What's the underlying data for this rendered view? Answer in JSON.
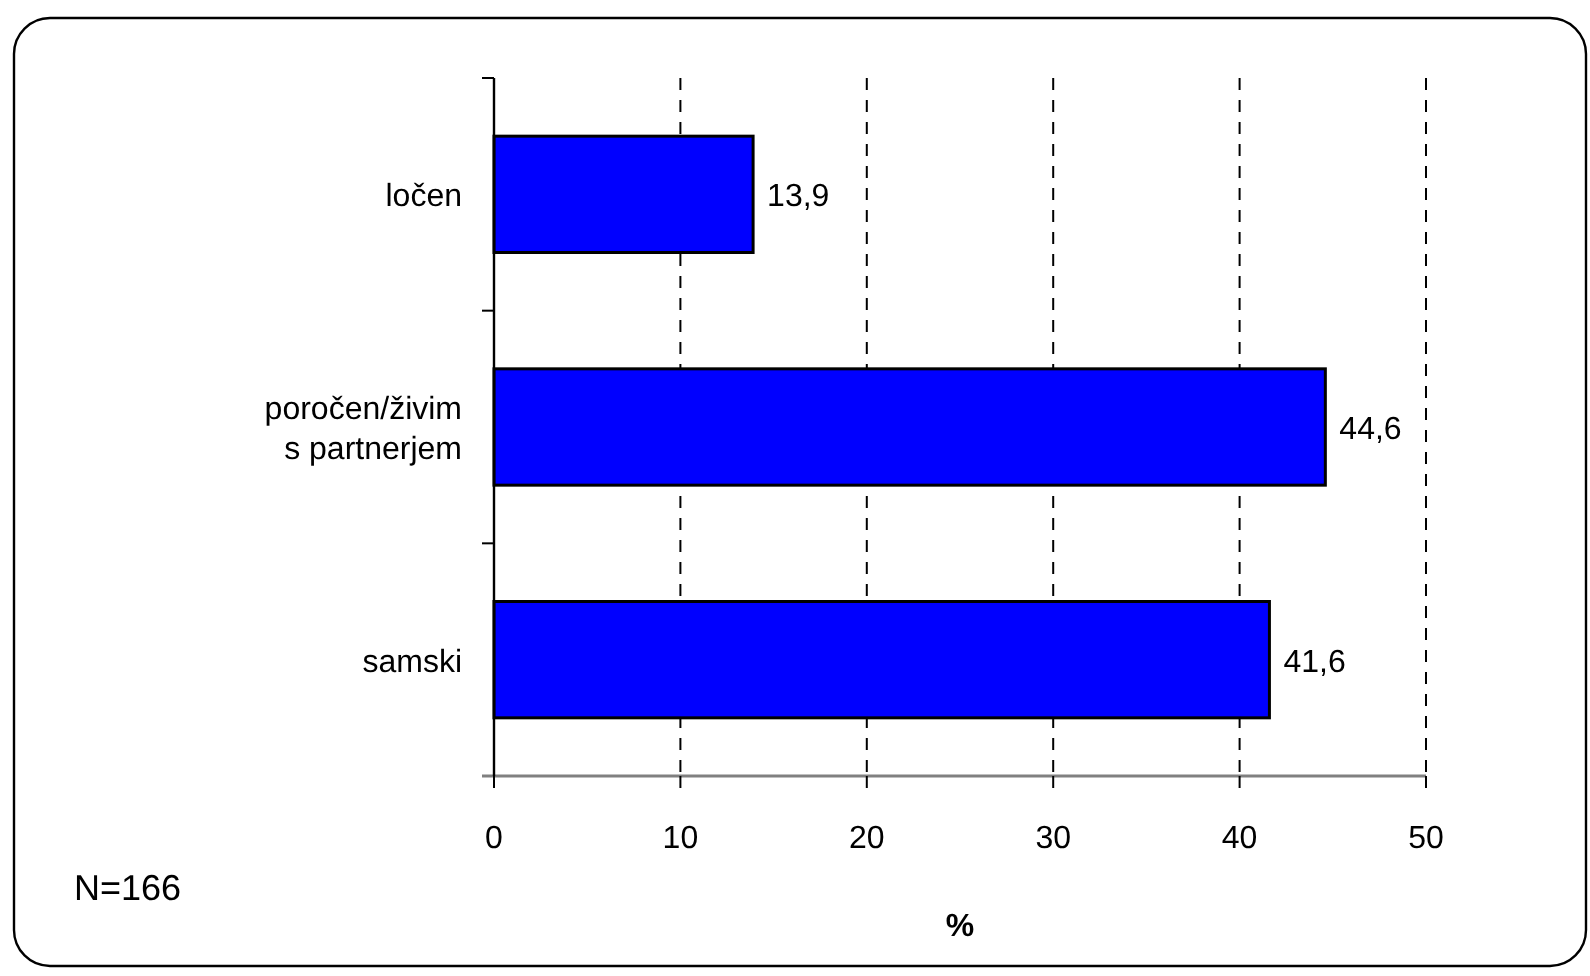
{
  "chart_data": {
    "type": "bar",
    "orientation": "horizontal",
    "categories": [
      "ločen",
      "poročen/živim s partnerjem",
      "samski"
    ],
    "values": [
      13.9,
      44.6,
      41.6
    ],
    "color": "#0000ff",
    "value_labels": [
      "13,9",
      "44,6",
      "41,6"
    ],
    "xlim": [
      0,
      50
    ],
    "xticks": [
      0,
      10,
      20,
      30,
      40,
      50
    ],
    "grid": "x",
    "xlabel": "%",
    "annotations": [
      "N=166"
    ]
  }
}
